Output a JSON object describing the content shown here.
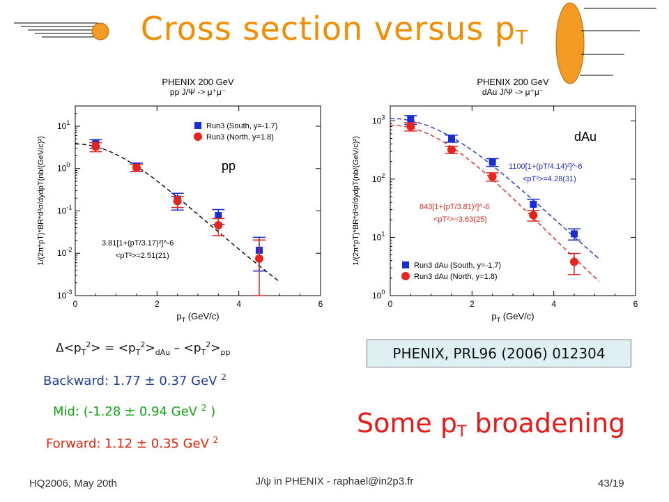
{
  "slide": {
    "title_main": "Cross section versus p",
    "title_sub": "T",
    "delta": {
      "d": "Δ<p",
      "t1": "T",
      "s1": "2",
      "mid": "> = <p",
      "t2": "T",
      "s2": "2",
      "mid2": ">",
      "dau": "dAu",
      "minus": " – <p",
      "t3": "T",
      "s3": "2",
      "close": ">",
      "pp": "pp"
    },
    "backward": {
      "text": "Backward: 1.77 ± 0.37 GeV ",
      "sup": "2"
    },
    "mid": {
      "text": "Mid: (-1.28 ± 0.94 GeV ",
      "sup": "2",
      "close": " )"
    },
    "forward": {
      "text": "Forward: 1.12 ± 0.35 GeV ",
      "sup": "2"
    },
    "reference": "PHENIX, PRL96 (2006) 012304",
    "broadening_main": "Some p",
    "broadening_sub": "T",
    "broadening_tail": " broadening",
    "footer_left": "HQ2006, May 20th",
    "footer_center": "J/ψ in PHENIX - raphael@in2p3.fr",
    "footer_right": "43/19"
  },
  "chart_data": [
    {
      "type": "scatter",
      "title": "PHENIX 200 GeV",
      "subtitle": "pp J/Ψ -> μ⁺μ⁻",
      "label": "pp",
      "xlabel": "pT (GeV/c)",
      "ylabel": "1/(2π*pT)*BR*d²σ/dydpT(nb/(GeV/c)²)",
      "xlim": [
        0,
        6
      ],
      "ylim": [
        0.001,
        30
      ],
      "yscale": "log",
      "xticks": [
        "0",
        "2",
        "4",
        "6"
      ],
      "yticks": [
        "10^-3",
        "10^-2",
        "10^-1",
        "10^0",
        "10^1"
      ],
      "legend_position": "top-right",
      "series": [
        {
          "name": "Run3 (South, y=-1.7)",
          "marker": "square",
          "color": "#1a2bd8",
          "x": [
            0.5,
            1.5,
            2.5,
            3.5,
            4.5
          ],
          "y": [
            3.9,
            1.1,
            0.19,
            0.078,
            0.0118
          ],
          "err_lo": [
            0.9,
            0.25,
            0.085,
            0.03,
            0.008
          ],
          "err_hi": [
            0.9,
            0.25,
            0.07,
            0.03,
            0.012
          ]
        },
        {
          "name": "Run3 (North, y=1.8)",
          "marker": "circle",
          "color": "#e8231e",
          "x": [
            0.5,
            1.5,
            2.5,
            3.5,
            4.5
          ],
          "y": [
            3.3,
            1.05,
            0.17,
            0.046,
            0.0075
          ],
          "err_lo": [
            0.8,
            0.2,
            0.05,
            0.02,
            0.0065
          ],
          "err_hi": [
            0.8,
            0.2,
            0.05,
            0.02,
            0.013
          ]
        }
      ],
      "fits": [
        {
          "label": "3.81[1+(pT/3.17)²]^-6",
          "label2": "<pT²>=2.51(21)",
          "color": "#000000",
          "A": 3.81,
          "p0": 3.17,
          "xmax": 5.0
        }
      ]
    },
    {
      "type": "scatter",
      "title": "PHENIX 200 GeV",
      "subtitle": "dAu J/Ψ -> μ⁺μ⁻",
      "label": "dAu",
      "xlabel": "pT (GeV/c)",
      "ylabel": "1/(2π*pT)*BR*d²σ/dydpT(nb/(GeV/c)²)",
      "xlim": [
        0,
        6
      ],
      "ylim": [
        1,
        1800
      ],
      "yscale": "log",
      "xticks": [
        "0",
        "2",
        "4",
        "6"
      ],
      "yticks": [
        "10^0",
        "10^1",
        "10^2",
        "10^3"
      ],
      "legend_position": "bottom-left",
      "series": [
        {
          "name": "Run3 dAu (South, y=-1.7)",
          "marker": "square",
          "color": "#1a2bd8",
          "x": [
            0.5,
            1.5,
            2.5,
            3.5,
            4.5
          ],
          "y": [
            1050,
            500,
            195,
            37,
            11.5
          ],
          "err_lo": [
            180,
            70,
            30,
            8,
            2.5
          ],
          "err_hi": [
            180,
            70,
            30,
            8,
            2.5
          ]
        },
        {
          "name": "Run3 dAu (North, y=1.8)",
          "marker": "circle",
          "color": "#e8231e",
          "x": [
            0.5,
            1.5,
            2.5,
            3.5,
            4.5
          ],
          "y": [
            800,
            320,
            110,
            24,
            3.8
          ],
          "err_lo": [
            130,
            45,
            18,
            5,
            1.5
          ],
          "err_hi": [
            130,
            45,
            18,
            5,
            1.5
          ]
        }
      ],
      "fits": [
        {
          "label": "1100[1+(pT/4.14)²]^-6",
          "label2": "<pT²>=4.28(31)",
          "color": "#1a2bd8",
          "A": 1100,
          "p0": 4.14,
          "xmax": 5.1
        },
        {
          "label": "843[1+(pT/3.81)²]^-6",
          "label2": "<pT²>=3.63(25)",
          "color": "#e8231e",
          "A": 843,
          "p0": 3.81,
          "xmax": 5.1
        }
      ]
    }
  ]
}
